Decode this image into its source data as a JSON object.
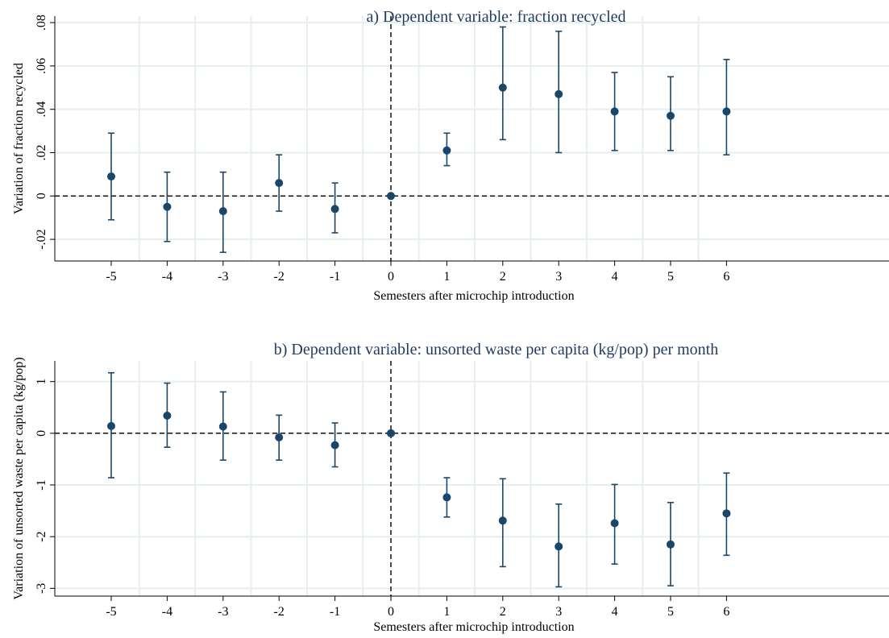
{
  "colors": {
    "marker": "#1a4669",
    "title": "#1f3a5f",
    "grid": "#e6eeee"
  },
  "chart_data": [
    {
      "type": "scatter",
      "subtype": "coefficient-plot-with-error-bars",
      "title": "a) Dependent variable: fraction recycled",
      "xlabel": "Semesters after microchip introduction",
      "ylabel": "Variation of fraction recycled",
      "xlim": [
        -6,
        12
      ],
      "ylim": [
        -0.03,
        0.083
      ],
      "x_ticks": [
        -5,
        -4,
        -3,
        -2,
        -1,
        0,
        1,
        2,
        3,
        4,
        5,
        6
      ],
      "x_tick_labels": [
        "-5",
        "-4",
        "-3",
        "-2",
        "-1",
        "0",
        "1",
        "2",
        "3",
        "4",
        "5",
        "6"
      ],
      "y_ticks": [
        -0.02,
        0,
        0.02,
        0.04,
        0.06,
        0.08
      ],
      "y_tick_labels": [
        "-.02",
        "0",
        ".02",
        ".04",
        ".06",
        ".08"
      ],
      "vertical_gridlines": [
        -4.5,
        -3.5,
        -2.5,
        -1.5,
        -0.5,
        0.5,
        1.5,
        2.5,
        3.5,
        4.5,
        5.5
      ],
      "reference_lines": {
        "x": 0,
        "y": 0
      },
      "points": [
        {
          "x": -5,
          "y": 0.009,
          "lo": -0.011,
          "hi": 0.029
        },
        {
          "x": -4,
          "y": -0.005,
          "lo": -0.021,
          "hi": 0.011
        },
        {
          "x": -3,
          "y": -0.007,
          "lo": -0.026,
          "hi": 0.011
        },
        {
          "x": -2,
          "y": 0.006,
          "lo": -0.007,
          "hi": 0.019
        },
        {
          "x": -1,
          "y": -0.006,
          "lo": -0.017,
          "hi": 0.006
        },
        {
          "x": 0,
          "y": 0.0,
          "lo": 0.0,
          "hi": 0.0
        },
        {
          "x": 1,
          "y": 0.021,
          "lo": 0.014,
          "hi": 0.029
        },
        {
          "x": 2,
          "y": 0.05,
          "lo": 0.026,
          "hi": 0.078
        },
        {
          "x": 3,
          "y": 0.047,
          "lo": 0.02,
          "hi": 0.076
        },
        {
          "x": 4,
          "y": 0.039,
          "lo": 0.021,
          "hi": 0.057
        },
        {
          "x": 5,
          "y": 0.037,
          "lo": 0.021,
          "hi": 0.055
        },
        {
          "x": 6,
          "y": 0.039,
          "lo": 0.019,
          "hi": 0.063
        }
      ]
    },
    {
      "type": "scatter",
      "subtype": "coefficient-plot-with-error-bars",
      "title": "b) Dependent variable: unsorted waste per capita (kg/pop) per month",
      "xlabel": "Semesters after microchip introduction",
      "ylabel": "Variation of unsorted waste per capita (kg/pop)",
      "xlim": [
        -6,
        12
      ],
      "ylim": [
        -3.15,
        1.4
      ],
      "x_ticks": [
        -5,
        -4,
        -3,
        -2,
        -1,
        0,
        1,
        2,
        3,
        4,
        5,
        6
      ],
      "x_tick_labels": [
        "-5",
        "-4",
        "-3",
        "-2",
        "-1",
        "0",
        "1",
        "2",
        "3",
        "4",
        "5",
        "6"
      ],
      "y_ticks": [
        -3,
        -2,
        -1,
        0,
        1
      ],
      "y_tick_labels": [
        "-3",
        "-2",
        "-1",
        "0",
        "1"
      ],
      "vertical_gridlines": [
        -4.5,
        -3.5,
        -2.5,
        -1.5,
        -0.5,
        0.5,
        1.5,
        2.5,
        3.5,
        4.5,
        5.5
      ],
      "reference_lines": {
        "x": 0,
        "y": 0
      },
      "points": [
        {
          "x": -5,
          "y": 0.14,
          "lo": -0.86,
          "hi": 1.17
        },
        {
          "x": -4,
          "y": 0.34,
          "lo": -0.27,
          "hi": 0.97
        },
        {
          "x": -3,
          "y": 0.13,
          "lo": -0.52,
          "hi": 0.8
        },
        {
          "x": -2,
          "y": -0.08,
          "lo": -0.52,
          "hi": 0.35
        },
        {
          "x": -1,
          "y": -0.23,
          "lo": -0.65,
          "hi": 0.2
        },
        {
          "x": 0,
          "y": 0.0,
          "lo": 0.0,
          "hi": 0.0
        },
        {
          "x": 1,
          "y": -1.24,
          "lo": -1.62,
          "hi": -0.86
        },
        {
          "x": 2,
          "y": -1.69,
          "lo": -2.58,
          "hi": -0.88
        },
        {
          "x": 3,
          "y": -2.19,
          "lo": -2.97,
          "hi": -1.37
        },
        {
          "x": 4,
          "y": -1.74,
          "lo": -2.53,
          "hi": -0.99
        },
        {
          "x": 5,
          "y": -2.15,
          "lo": -2.95,
          "hi": -1.34
        },
        {
          "x": 6,
          "y": -1.55,
          "lo": -2.36,
          "hi": -0.77
        }
      ]
    }
  ]
}
